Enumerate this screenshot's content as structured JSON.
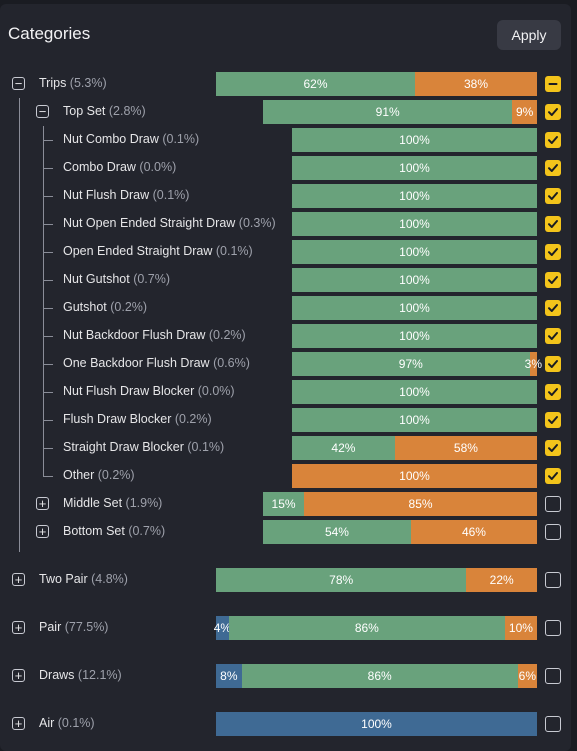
{
  "header": {
    "title": "Categories",
    "apply_label": "Apply"
  },
  "colors": {
    "made_hand": "#69a27c",
    "draw": "#d9843a",
    "weak": "#3f6a94",
    "checkbox": "#f3c41b"
  },
  "rows": [
    {
      "id": "trips",
      "label": "Trips",
      "pct": "(5.3%)",
      "toggle": "collapse",
      "state": "partial",
      "segments": [
        {
          "value": 62,
          "text": "62%",
          "color": "made"
        },
        {
          "value": 38,
          "text": "38%",
          "color": "draw"
        }
      ]
    },
    {
      "id": "top-set",
      "label": "Top Set",
      "pct": "(2.8%)",
      "toggle": "collapse",
      "state": "checked",
      "segments": [
        {
          "value": 91,
          "text": "91%",
          "color": "made"
        },
        {
          "value": 9,
          "text": "9%",
          "color": "draw"
        }
      ]
    },
    {
      "id": "nut-combo-draw",
      "label": "Nut Combo Draw",
      "pct": "(0.1%)",
      "state": "checked",
      "segments": [
        {
          "value": 100,
          "text": "100%",
          "color": "made"
        }
      ]
    },
    {
      "id": "combo-draw",
      "label": "Combo Draw",
      "pct": "(0.0%)",
      "state": "checked",
      "segments": [
        {
          "value": 100,
          "text": "100%",
          "color": "made"
        }
      ]
    },
    {
      "id": "nut-flush-draw",
      "label": "Nut Flush Draw",
      "pct": "(0.1%)",
      "state": "checked",
      "segments": [
        {
          "value": 100,
          "text": "100%",
          "color": "made"
        }
      ]
    },
    {
      "id": "nut-oesd",
      "label": "Nut Open Ended Straight Draw",
      "pct": "(0.3%)",
      "state": "checked",
      "segments": [
        {
          "value": 100,
          "text": "100%",
          "color": "made"
        }
      ]
    },
    {
      "id": "oesd",
      "label": "Open Ended Straight Draw",
      "pct": "(0.1%)",
      "state": "checked",
      "segments": [
        {
          "value": 100,
          "text": "100%",
          "color": "made"
        }
      ]
    },
    {
      "id": "nut-gutshot",
      "label": "Nut Gutshot",
      "pct": "(0.7%)",
      "state": "checked",
      "segments": [
        {
          "value": 100,
          "text": "100%",
          "color": "made"
        }
      ]
    },
    {
      "id": "gutshot",
      "label": "Gutshot",
      "pct": "(0.2%)",
      "state": "checked",
      "segments": [
        {
          "value": 100,
          "text": "100%",
          "color": "made"
        }
      ]
    },
    {
      "id": "nut-bdfd",
      "label": "Nut Backdoor Flush Draw",
      "pct": "(0.2%)",
      "state": "checked",
      "segments": [
        {
          "value": 100,
          "text": "100%",
          "color": "made"
        }
      ]
    },
    {
      "id": "one-bdfd",
      "label": "One Backdoor Flush Draw",
      "pct": "(0.6%)",
      "state": "checked",
      "segments": [
        {
          "value": 97,
          "text": "97%",
          "color": "made"
        },
        {
          "value": 3,
          "text": "3%",
          "color": "draw"
        }
      ]
    },
    {
      "id": "nut-fd-blocker",
      "label": "Nut Flush Draw Blocker",
      "pct": "(0.0%)",
      "state": "checked",
      "segments": [
        {
          "value": 100,
          "text": "100%",
          "color": "made"
        }
      ]
    },
    {
      "id": "fd-blocker",
      "label": "Flush Draw Blocker",
      "pct": "(0.2%)",
      "state": "checked",
      "segments": [
        {
          "value": 100,
          "text": "100%",
          "color": "made"
        }
      ]
    },
    {
      "id": "sd-blocker",
      "label": "Straight Draw Blocker",
      "pct": "(0.1%)",
      "state": "checked",
      "segments": [
        {
          "value": 42,
          "text": "42%",
          "color": "made"
        },
        {
          "value": 58,
          "text": "58%",
          "color": "draw"
        }
      ]
    },
    {
      "id": "other",
      "label": "Other",
      "pct": "(0.2%)",
      "state": "checked",
      "segments": [
        {
          "value": 100,
          "text": "100%",
          "color": "draw"
        }
      ]
    },
    {
      "id": "middle-set",
      "label": "Middle Set",
      "pct": "(1.9%)",
      "toggle": "expand",
      "state": "off",
      "segments": [
        {
          "value": 15,
          "text": "15%",
          "color": "made"
        },
        {
          "value": 85,
          "text": "85%",
          "color": "draw"
        }
      ]
    },
    {
      "id": "bottom-set",
      "label": "Bottom Set",
      "pct": "(0.7%)",
      "toggle": "expand",
      "state": "off",
      "segments": [
        {
          "value": 54,
          "text": "54%",
          "color": "made"
        },
        {
          "value": 46,
          "text": "46%",
          "color": "draw"
        }
      ]
    },
    {
      "id": "two-pair",
      "label": "Two Pair",
      "pct": "(4.8%)",
      "toggle": "expand",
      "state": "off",
      "segments": [
        {
          "value": 78,
          "text": "78%",
          "color": "made"
        },
        {
          "value": 22,
          "text": "22%",
          "color": "draw"
        }
      ]
    },
    {
      "id": "pair",
      "label": "Pair",
      "pct": "(77.5%)",
      "toggle": "expand",
      "state": "off",
      "segments": [
        {
          "value": 4,
          "text": "4%",
          "color": "weak"
        },
        {
          "value": 86,
          "text": "86%",
          "color": "made"
        },
        {
          "value": 10,
          "text": "10%",
          "color": "draw"
        }
      ]
    },
    {
      "id": "draws",
      "label": "Draws",
      "pct": "(12.1%)",
      "toggle": "expand",
      "state": "off",
      "segments": [
        {
          "value": 8,
          "text": "8%",
          "color": "weak"
        },
        {
          "value": 86,
          "text": "86%",
          "color": "made"
        },
        {
          "value": 6,
          "text": "6%",
          "color": "draw"
        }
      ]
    },
    {
      "id": "air",
      "label": "Air",
      "pct": "(0.1%)",
      "toggle": "expand",
      "state": "off",
      "segments": [
        {
          "value": 100,
          "text": "100%",
          "color": "weak"
        }
      ]
    }
  ]
}
